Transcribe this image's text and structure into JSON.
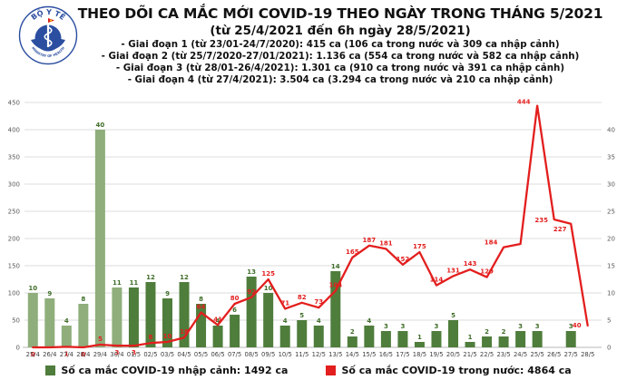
{
  "header": {
    "title_line1": "THEO DÕI CA MẮC MỚI COVID-19 THEO NGÀY TRONG THÁNG 5/2021",
    "title_line2": "(từ 25/4/2021 đến 6h ngày 28/5/2021)",
    "bullets": [
      "- Giai đoạn 1 (từ 23/01-24/7/2020): 415 ca (106 ca trong nước và 309 ca nhập cảnh)",
      "- Giai đoạn 2 (từ 25/7/2020-27/01/2021): 1.136 ca (554 ca trong nước và 582 ca nhập cảnh)",
      "- Giai đoạn 3 (từ 28/01-26/4/2021): 1.301 ca (910 ca trong nước và 391 ca nhập cảnh)",
      "- Giai đoạn 4 (từ 27/4/2021): 3.504 ca (3.294 ca trong nước và 210 ca nhập cảnh)"
    ],
    "logo": {
      "top_text": "BỘ Y TẾ",
      "bottom_text": "MINISTRY OF HEALTH"
    }
  },
  "chart_data": {
    "type": "bar",
    "subtype": "bar-line-combo",
    "categories": [
      "25/4",
      "26/4",
      "27/4",
      "28/4",
      "29/4",
      "30/4",
      "01/5",
      "02/5",
      "03/5",
      "04/5",
      "05/5",
      "06/5",
      "07/5",
      "08/5",
      "09/5",
      "10/5",
      "11/5",
      "12/5",
      "13/5",
      "14/5",
      "15/5",
      "16/5",
      "17/5",
      "18/5",
      "19/5",
      "20/5",
      "21/5",
      "22/5",
      "23/5",
      "24/5",
      "25/5",
      "26/5",
      "27/5",
      "28/5"
    ],
    "series": [
      {
        "name": "Số ca mắc COVID-19 nhập cảnh",
        "type": "bar",
        "axis": "right",
        "color_april": "#8fae7b",
        "color_may": "#4f7d3c",
        "label_color": "#3f6d28",
        "values": [
          10,
          9,
          4,
          8,
          40,
          11,
          11,
          12,
          9,
          12,
          8,
          4,
          6,
          13,
          10,
          4,
          5,
          4,
          14,
          2,
          4,
          3,
          3,
          1,
          3,
          5,
          1,
          2,
          2,
          3,
          3,
          0,
          3,
          0
        ]
      },
      {
        "name": "Số ca mắc COVID-19 trong nước",
        "type": "line",
        "axis": "left",
        "color": "#e31e1e",
        "values": [
          0,
          0,
          1,
          0,
          5,
          3,
          3,
          8,
          10,
          18,
          64,
          41,
          80,
          92,
          125,
          71,
          82,
          73,
          104,
          165,
          187,
          181,
          152,
          175,
          114,
          131,
          143,
          129,
          184,
          190,
          444,
          235,
          227,
          40
        ],
        "point_labels": [
          "0",
          null,
          "1",
          "0",
          "5",
          "3",
          "3",
          "8",
          "10",
          "18",
          "64",
          "41",
          "80",
          "92",
          "125",
          "71",
          "82",
          "73",
          "104",
          "165",
          "187",
          "181",
          "152",
          "175",
          "114",
          "131",
          "143",
          "129",
          "184",
          null,
          "444",
          "235",
          "227",
          "40"
        ]
      }
    ],
    "left_axis": {
      "min": 0,
      "max": 450,
      "step": 50
    },
    "right_axis": {
      "min": 0,
      "max": 45,
      "step": 5,
      "top_label": 40
    },
    "grid": true,
    "legend_position": "bottom"
  },
  "legend": [
    {
      "label": "Số ca mắc COVID-19 nhập cảnh: 1492 ca",
      "color": "#4f7d3c"
    },
    {
      "label": "Số ca mắc COVID-19 trong nước: 4864 ca",
      "color": "#e31e1e"
    }
  ]
}
